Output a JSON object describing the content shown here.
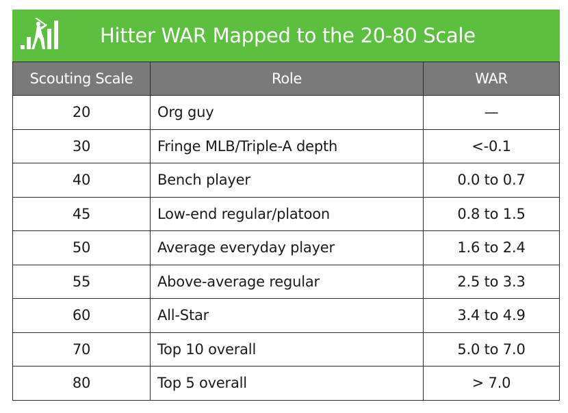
{
  "banner": {
    "title": "Hitter WAR Mapped to the 20-80 Scale",
    "background_color": "#5cbf3f",
    "logo_icon": "batter-with-bar-chart-logo"
  },
  "table": {
    "header_color": "#7a7a7a",
    "headers": {
      "scale": "Scouting Scale",
      "role": "Role",
      "war": "WAR"
    },
    "rows": [
      {
        "scale": "20",
        "role": "Org guy",
        "war": "—"
      },
      {
        "scale": "30",
        "role": "Fringe MLB/Triple-A depth",
        "war": "<-0.1"
      },
      {
        "scale": "40",
        "role": "Bench player",
        "war": "0.0 to 0.7"
      },
      {
        "scale": "45",
        "role": "Low-end regular/platoon",
        "war": "0.8 to 1.5"
      },
      {
        "scale": "50",
        "role": "Average everyday player",
        "war": "1.6 to 2.4"
      },
      {
        "scale": "55",
        "role": "Above-average regular",
        "war": "2.5 to 3.3"
      },
      {
        "scale": "60",
        "role": "All-Star",
        "war": "3.4 to 4.9"
      },
      {
        "scale": "70",
        "role": "Top 10 overall",
        "war": "5.0 to 7.0"
      },
      {
        "scale": "80",
        "role": "Top 5 overall",
        "war": "> 7.0"
      }
    ]
  }
}
